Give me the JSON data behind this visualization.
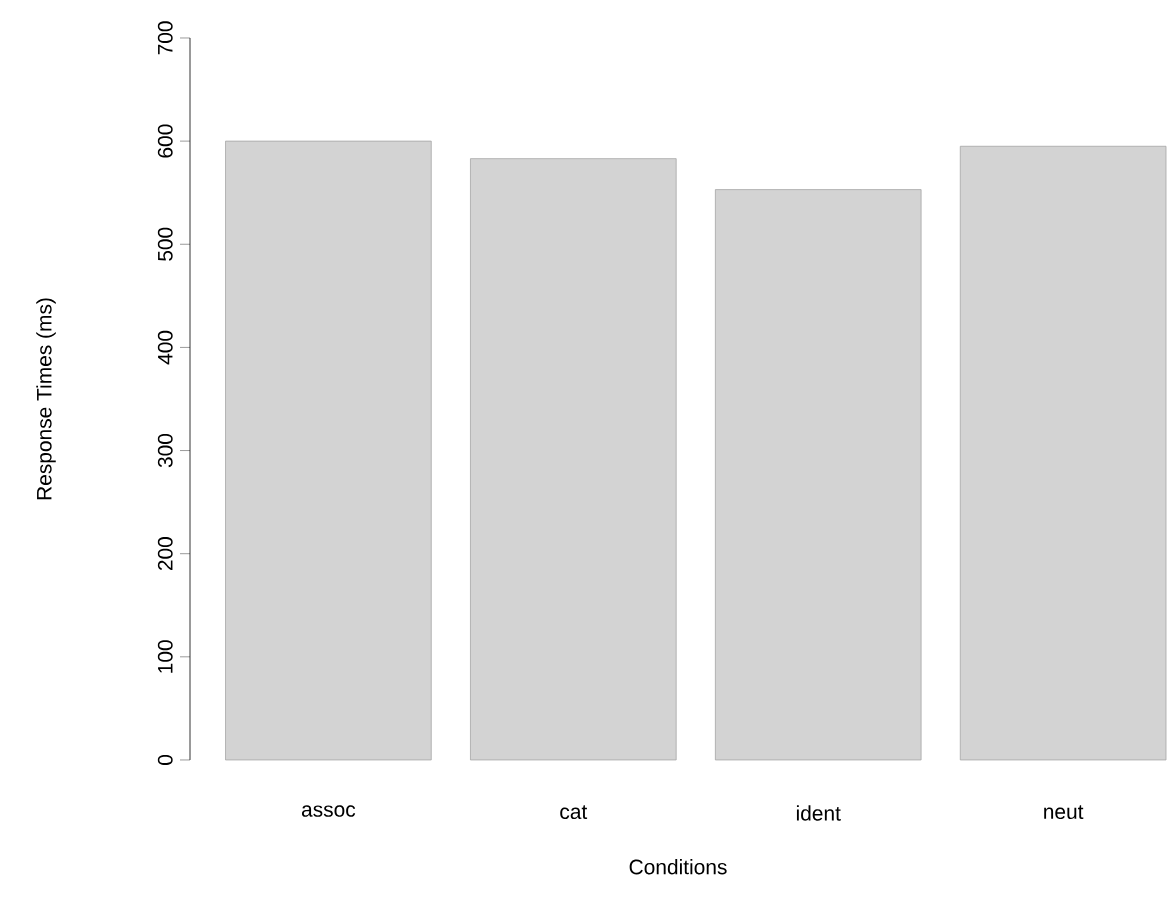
{
  "chart_data": {
    "type": "bar",
    "xlabel": "Conditions",
    "ylabel": "Response Times (ms)",
    "categories": [
      "assoc",
      "cat",
      "ident",
      "neut"
    ],
    "values": [
      600,
      583,
      553,
      595
    ],
    "color": "#d3d3d3",
    "ylim": [
      0,
      700
    ],
    "yticks": [
      0,
      100,
      200,
      300,
      400,
      500,
      600,
      700
    ],
    "grid": false
  }
}
